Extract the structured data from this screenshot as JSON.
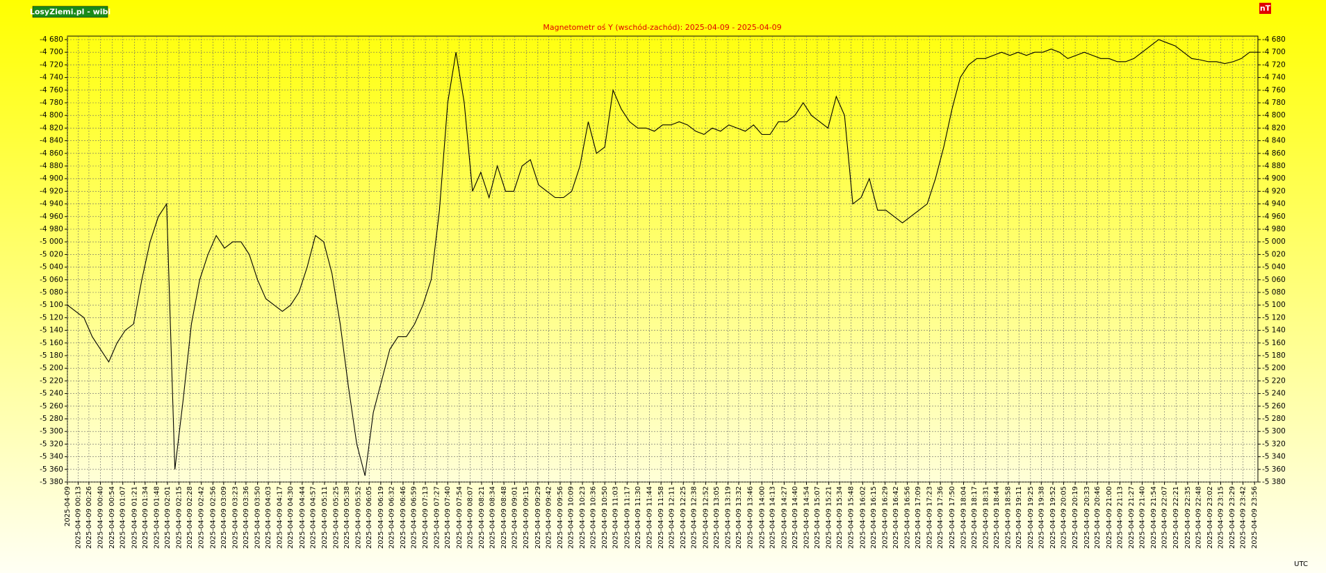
{
  "chart_data": {
    "type": "line",
    "title": "Magnetometr oś Y (wschód-zachód): 2025-04-09 - 2025-04-09",
    "source": "LosyZiemi.pl - wibi",
    "y_label": "nT",
    "x_label": "UTC",
    "grid": true,
    "xlim": [
      0,
      1440
    ],
    "ylim": [
      -5380,
      -4680
    ],
    "yticks": [
      {
        "value": -4680,
        "label": "-4 680"
      },
      {
        "value": -4700,
        "label": "-4 700"
      },
      {
        "value": -4720,
        "label": "-4 720"
      },
      {
        "value": -4740,
        "label": "-4 740"
      },
      {
        "value": -4760,
        "label": "-4 760"
      },
      {
        "value": -4780,
        "label": "-4 780"
      },
      {
        "value": -4800,
        "label": "-4 800"
      },
      {
        "value": -4820,
        "label": "-4 820"
      },
      {
        "value": -4840,
        "label": "-4 840"
      },
      {
        "value": -4860,
        "label": "-4 860"
      },
      {
        "value": -4880,
        "label": "-4 880"
      },
      {
        "value": -4900,
        "label": "-4 900"
      },
      {
        "value": -4920,
        "label": "-4 920"
      },
      {
        "value": -4940,
        "label": "-4 940"
      },
      {
        "value": -4960,
        "label": "-4 960"
      },
      {
        "value": -4980,
        "label": "-4 980"
      },
      {
        "value": -5000,
        "label": "-5 000"
      },
      {
        "value": -5020,
        "label": "-5 020"
      },
      {
        "value": -5040,
        "label": "-5 040"
      },
      {
        "value": -5060,
        "label": "-5 060"
      },
      {
        "value": -5080,
        "label": "-5 080"
      },
      {
        "value": -5100,
        "label": "-5 100"
      },
      {
        "value": -5120,
        "label": "-5 120"
      },
      {
        "value": -5140,
        "label": "-5 140"
      },
      {
        "value": -5160,
        "label": "-5 160"
      },
      {
        "value": -5180,
        "label": "-5 180"
      },
      {
        "value": -5200,
        "label": "-5 200"
      },
      {
        "value": -5220,
        "label": "-5 220"
      },
      {
        "value": -5240,
        "label": "-5 240"
      },
      {
        "value": -5260,
        "label": "-5 260"
      },
      {
        "value": -5280,
        "label": "-5 280"
      },
      {
        "value": -5300,
        "label": "-5 300"
      },
      {
        "value": -5320,
        "label": "-5 320"
      },
      {
        "value": -5340,
        "label": "-5 340"
      },
      {
        "value": -5360,
        "label": "-5 360"
      },
      {
        "value": -5380,
        "label": "-5 380"
      }
    ],
    "xticks": [
      {
        "value": 0,
        "label": "2025-04-09"
      },
      {
        "value": 13,
        "label": "2025-04-09 00:13"
      },
      {
        "value": 26,
        "label": "2025-04-09 00:26"
      },
      {
        "value": 40,
        "label": "2025-04-09 00:40"
      },
      {
        "value": 54,
        "label": "2025-04-09 00:54"
      },
      {
        "value": 67,
        "label": "2025-04-09 01:07"
      },
      {
        "value": 81,
        "label": "2025-04-09 01:21"
      },
      {
        "value": 94,
        "label": "2025-04-09 01:34"
      },
      {
        "value": 108,
        "label": "2025-04-09 01:48"
      },
      {
        "value": 121,
        "label": "2025-04-09 02:01"
      },
      {
        "value": 135,
        "label": "2025-04-09 02:15"
      },
      {
        "value": 148,
        "label": "2025-04-09 02:28"
      },
      {
        "value": 162,
        "label": "2025-04-09 02:42"
      },
      {
        "value": 176,
        "label": "2025-04-09 02:56"
      },
      {
        "value": 189,
        "label": "2025-04-09 03:09"
      },
      {
        "value": 203,
        "label": "2025-04-09 03:23"
      },
      {
        "value": 216,
        "label": "2025-04-09 03:36"
      },
      {
        "value": 230,
        "label": "2025-04-09 03:50"
      },
      {
        "value": 243,
        "label": "2025-04-09 04:03"
      },
      {
        "value": 257,
        "label": "2025-04-09 04:17"
      },
      {
        "value": 270,
        "label": "2025-04-09 04:30"
      },
      {
        "value": 284,
        "label": "2025-04-09 04:44"
      },
      {
        "value": 297,
        "label": "2025-04-09 04:57"
      },
      {
        "value": 311,
        "label": "2025-04-09 05:11"
      },
      {
        "value": 325,
        "label": "2025-04-09 05:25"
      },
      {
        "value": 338,
        "label": "2025-04-09 05:38"
      },
      {
        "value": 352,
        "label": "2025-04-09 05:52"
      },
      {
        "value": 365,
        "label": "2025-04-09 06:05"
      },
      {
        "value": 379,
        "label": "2025-04-09 06:19"
      },
      {
        "value": 392,
        "label": "2025-04-09 06:32"
      },
      {
        "value": 406,
        "label": "2025-04-09 06:46"
      },
      {
        "value": 419,
        "label": "2025-04-09 06:59"
      },
      {
        "value": 433,
        "label": "2025-04-09 07:13"
      },
      {
        "value": 447,
        "label": "2025-04-09 07:27"
      },
      {
        "value": 460,
        "label": "2025-04-09 07:40"
      },
      {
        "value": 474,
        "label": "2025-04-09 07:54"
      },
      {
        "value": 487,
        "label": "2025-04-09 08:07"
      },
      {
        "value": 501,
        "label": "2025-04-09 08:21"
      },
      {
        "value": 514,
        "label": "2025-04-09 08:34"
      },
      {
        "value": 528,
        "label": "2025-04-09 08:48"
      },
      {
        "value": 541,
        "label": "2025-04-09 09:01"
      },
      {
        "value": 555,
        "label": "2025-04-09 09:15"
      },
      {
        "value": 569,
        "label": "2025-04-09 09:29"
      },
      {
        "value": 582,
        "label": "2025-04-09 09:42"
      },
      {
        "value": 596,
        "label": "2025-04-09 09:56"
      },
      {
        "value": 609,
        "label": "2025-04-09 10:09"
      },
      {
        "value": 623,
        "label": "2025-04-09 10:23"
      },
      {
        "value": 636,
        "label": "2025-04-09 10:36"
      },
      {
        "value": 650,
        "label": "2025-04-09 10:50"
      },
      {
        "value": 663,
        "label": "2025-04-09 11:03"
      },
      {
        "value": 677,
        "label": "2025-04-09 11:17"
      },
      {
        "value": 690,
        "label": "2025-04-09 11:30"
      },
      {
        "value": 704,
        "label": "2025-04-09 11:44"
      },
      {
        "value": 718,
        "label": "2025-04-09 11:58"
      },
      {
        "value": 731,
        "label": "2025-04-09 12:11"
      },
      {
        "value": 745,
        "label": "2025-04-09 12:25"
      },
      {
        "value": 758,
        "label": "2025-04-09 12:38"
      },
      {
        "value": 772,
        "label": "2025-04-09 12:52"
      },
      {
        "value": 785,
        "label": "2025-04-09 13:05"
      },
      {
        "value": 799,
        "label": "2025-04-09 13:19"
      },
      {
        "value": 812,
        "label": "2025-04-09 13:32"
      },
      {
        "value": 826,
        "label": "2025-04-09 13:46"
      },
      {
        "value": 840,
        "label": "2025-04-09 14:00"
      },
      {
        "value": 853,
        "label": "2025-04-09 14:13"
      },
      {
        "value": 867,
        "label": "2025-04-09 14:27"
      },
      {
        "value": 880,
        "label": "2025-04-09 14:40"
      },
      {
        "value": 894,
        "label": "2025-04-09 14:54"
      },
      {
        "value": 907,
        "label": "2025-04-09 15:07"
      },
      {
        "value": 921,
        "label": "2025-04-09 15:21"
      },
      {
        "value": 934,
        "label": "2025-04-09 15:34"
      },
      {
        "value": 948,
        "label": "2025-04-09 15:48"
      },
      {
        "value": 962,
        "label": "2025-04-09 16:02"
      },
      {
        "value": 975,
        "label": "2025-04-09 16:15"
      },
      {
        "value": 989,
        "label": "2025-04-09 16:29"
      },
      {
        "value": 1002,
        "label": "2025-04-09 16:42"
      },
      {
        "value": 1016,
        "label": "2025-04-09 16:56"
      },
      {
        "value": 1029,
        "label": "2025-04-09 17:09"
      },
      {
        "value": 1043,
        "label": "2025-04-09 17:23"
      },
      {
        "value": 1056,
        "label": "2025-04-09 17:36"
      },
      {
        "value": 1070,
        "label": "2025-04-09 17:50"
      },
      {
        "value": 1084,
        "label": "2025-04-09 18:04"
      },
      {
        "value": 1097,
        "label": "2025-04-09 18:17"
      },
      {
        "value": 1111,
        "label": "2025-04-09 18:31"
      },
      {
        "value": 1124,
        "label": "2025-04-09 18:44"
      },
      {
        "value": 1138,
        "label": "2025-04-09 18:58"
      },
      {
        "value": 1151,
        "label": "2025-04-09 19:11"
      },
      {
        "value": 1165,
        "label": "2025-04-09 19:25"
      },
      {
        "value": 1178,
        "label": "2025-04-09 19:38"
      },
      {
        "value": 1192,
        "label": "2025-04-09 19:52"
      },
      {
        "value": 1205,
        "label": "2025-04-09 20:05"
      },
      {
        "value": 1219,
        "label": "2025-04-09 20:19"
      },
      {
        "value": 1233,
        "label": "2025-04-09 20:33"
      },
      {
        "value": 1246,
        "label": "2025-04-09 20:46"
      },
      {
        "value": 1260,
        "label": "2025-04-09 21:00"
      },
      {
        "value": 1273,
        "label": "2025-04-09 21:13"
      },
      {
        "value": 1287,
        "label": "2025-04-09 21:27"
      },
      {
        "value": 1300,
        "label": "2025-04-09 21:40"
      },
      {
        "value": 1314,
        "label": "2025-04-09 21:54"
      },
      {
        "value": 1327,
        "label": "2025-04-09 22:07"
      },
      {
        "value": 1341,
        "label": "2025-04-09 22:21"
      },
      {
        "value": 1355,
        "label": "2025-04-09 22:35"
      },
      {
        "value": 1368,
        "label": "2025-04-09 22:48"
      },
      {
        "value": 1382,
        "label": "2025-04-09 23:02"
      },
      {
        "value": 1395,
        "label": "2025-04-09 23:15"
      },
      {
        "value": 1409,
        "label": "2025-04-09 23:29"
      },
      {
        "value": 1422,
        "label": "2025-04-09 23:42"
      },
      {
        "value": 1436,
        "label": "2025-04-09 23:56"
      }
    ],
    "x": [
      0,
      10,
      20,
      30,
      40,
      50,
      60,
      70,
      80,
      90,
      100,
      110,
      120,
      130,
      140,
      150,
      160,
      170,
      180,
      190,
      200,
      210,
      220,
      230,
      240,
      250,
      260,
      270,
      280,
      290,
      300,
      310,
      320,
      330,
      340,
      350,
      360,
      370,
      380,
      390,
      400,
      410,
      420,
      430,
      440,
      450,
      460,
      470,
      480,
      490,
      500,
      510,
      520,
      530,
      540,
      550,
      560,
      570,
      580,
      590,
      600,
      610,
      620,
      630,
      640,
      650,
      660,
      670,
      680,
      690,
      700,
      710,
      720,
      730,
      740,
      750,
      760,
      770,
      780,
      790,
      800,
      810,
      820,
      830,
      840,
      850,
      860,
      870,
      880,
      890,
      900,
      910,
      920,
      930,
      940,
      950,
      960,
      970,
      980,
      990,
      1000,
      1010,
      1020,
      1030,
      1040,
      1050,
      1060,
      1070,
      1080,
      1090,
      1100,
      1110,
      1120,
      1130,
      1140,
      1150,
      1160,
      1170,
      1180,
      1190,
      1200,
      1210,
      1220,
      1230,
      1240,
      1250,
      1260,
      1270,
      1280,
      1290,
      1300,
      1310,
      1320,
      1330,
      1340,
      1350,
      1360,
      1370,
      1380,
      1390,
      1400,
      1410,
      1420,
      1430,
      1440
    ],
    "series": [
      {
        "color": "#000000",
        "values": [
          -5100,
          -5110,
          -5120,
          -5150,
          -5170,
          -5190,
          -5160,
          -5140,
          -5130,
          -5060,
          -5000,
          -4960,
          -4940,
          -5360,
          -5250,
          -5130,
          -5060,
          -5020,
          -4990,
          -5010,
          -5000,
          -5000,
          -5020,
          -5060,
          -5090,
          -5100,
          -5110,
          -5100,
          -5080,
          -5040,
          -4990,
          -5000,
          -5050,
          -5130,
          -5230,
          -5320,
          -5370,
          -5270,
          -5220,
          -5170,
          -5150,
          -5150,
          -5130,
          -5100,
          -5060,
          -4950,
          -4780,
          -4700,
          -4780,
          -4920,
          -4890,
          -4930,
          -4880,
          -4920,
          -4920,
          -4880,
          -4870,
          -4910,
          -4920,
          -4930,
          -4930,
          -4920,
          -4880,
          -4810,
          -4860,
          -4850,
          -4760,
          -4790,
          -4810,
          -4820,
          -4820,
          -4825,
          -4815,
          -4815,
          -4810,
          -4815,
          -4825,
          -4830,
          -4820,
          -4825,
          -4815,
          -4820,
          -4825,
          -4815,
          -4830,
          -4830,
          -4810,
          -4810,
          -4800,
          -4780,
          -4800,
          -4810,
          -4820,
          -4770,
          -4800,
          -4940,
          -4930,
          -4900,
          -4950,
          -4950,
          -4960,
          -4970,
          -4960,
          -4950,
          -4940,
          -4900,
          -4850,
          -4790,
          -4740,
          -4720,
          -4710,
          -4710,
          -4705,
          -4700,
          -4705,
          -4700,
          -4705,
          -4700,
          -4700,
          -4695,
          -4700,
          -4710,
          -4705,
          -4700,
          -4705,
          -4710,
          -4710,
          -4715,
          -4715,
          -4710,
          -4700,
          -4690,
          -4680,
          -4685,
          -4690,
          -4700,
          -4710,
          -4712,
          -4715,
          -4715,
          -4718,
          -4715,
          -4710,
          -4700,
          -4700
        ]
      }
    ]
  }
}
